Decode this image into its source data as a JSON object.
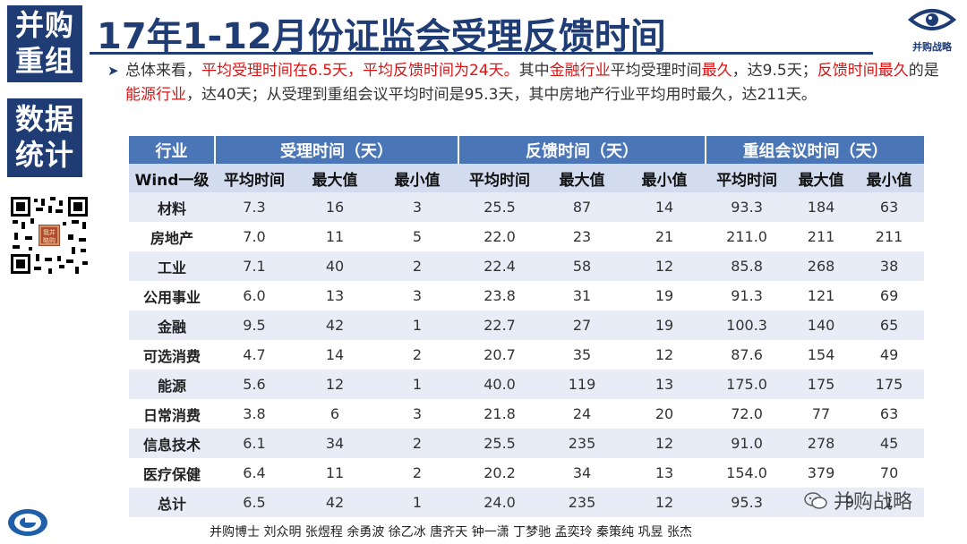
{
  "sidebar": {
    "block1_lines": [
      "并购",
      "重组"
    ],
    "block2_lines": [
      "数据",
      "统计"
    ]
  },
  "header": {
    "title": "17年1-12月份证监会受理反馈时间",
    "brand_text": "并购战略"
  },
  "summary": {
    "segments": [
      {
        "text": "总体来看，",
        "style": "normal"
      },
      {
        "text": "平均受理时间在6.5天，平均反馈时间为24天。",
        "style": "red"
      },
      {
        "text": "其中",
        "style": "normal"
      },
      {
        "text": "金融行业",
        "style": "red"
      },
      {
        "text": "平均受理时间",
        "style": "normal"
      },
      {
        "text": "最久",
        "style": "red"
      },
      {
        "text": "，达9.5天；",
        "style": "normal"
      },
      {
        "text": "反馈时间最久",
        "style": "red"
      },
      {
        "text": "的是",
        "style": "normal"
      },
      {
        "text": "能源行业",
        "style": "red"
      },
      {
        "text": "，达40天；从受理到重组会议平均时间是95.3天，其中房地产行业平均用时最久，达211天。",
        "style": "normal"
      }
    ]
  },
  "table": {
    "group_headers": [
      "行业",
      "受理时间（天）",
      "反馈时间（天）",
      "重组会议时间（天）"
    ],
    "sub_headers": [
      "Wind一级",
      "平均时间",
      "最大值",
      "最小值",
      "平均时间",
      "最大值",
      "最小值",
      "平均时间",
      "最大值",
      "最小值"
    ],
    "rows": [
      [
        "材料",
        "7.3",
        "16",
        "3",
        "25.5",
        "87",
        "14",
        "93.3",
        "184",
        "63"
      ],
      [
        "房地产",
        "7.0",
        "11",
        "5",
        "22.0",
        "23",
        "21",
        "211.0",
        "211",
        "211"
      ],
      [
        "工业",
        "7.1",
        "40",
        "2",
        "22.4",
        "58",
        "12",
        "85.8",
        "268",
        "38"
      ],
      [
        "公用事业",
        "6.0",
        "13",
        "3",
        "23.8",
        "31",
        "19",
        "91.3",
        "121",
        "69"
      ],
      [
        "金融",
        "9.5",
        "42",
        "1",
        "22.7",
        "27",
        "19",
        "100.3",
        "140",
        "65"
      ],
      [
        "可选消费",
        "4.7",
        "14",
        "2",
        "20.7",
        "35",
        "12",
        "87.6",
        "154",
        "49"
      ],
      [
        "能源",
        "5.6",
        "12",
        "1",
        "40.0",
        "119",
        "13",
        "175.0",
        "175",
        "175"
      ],
      [
        "日常消费",
        "3.8",
        "6",
        "3",
        "21.8",
        "24",
        "20",
        "72.0",
        "77",
        "63"
      ],
      [
        "信息技术",
        "6.1",
        "34",
        "2",
        "25.5",
        "235",
        "12",
        "91.0",
        "278",
        "45"
      ],
      [
        "医疗保健",
        "6.4",
        "11",
        "2",
        "20.2",
        "34",
        "13",
        "154.0",
        "379",
        "70"
      ],
      [
        "总计",
        "6.5",
        "42",
        "1",
        "24.0",
        "235",
        "12",
        "95.3",
        "",
        ""
      ]
    ],
    "total_row_partial": [
      "9",
      "1"
    ]
  },
  "footer": {
    "authors": "并购博士 刘众明 张煜程 余勇波 徐乙冰 唐齐天 钟一潇 丁梦驰 孟奕玲 秦策纯 巩昱 张杰"
  },
  "watermark": {
    "text": "并购战略"
  },
  "colors": {
    "navy": "#1f3c74",
    "header_blue": "#4a76b8",
    "subheader": "#d2dcee",
    "stripe": "#e7ecf6",
    "accent_red": "#d91414"
  }
}
